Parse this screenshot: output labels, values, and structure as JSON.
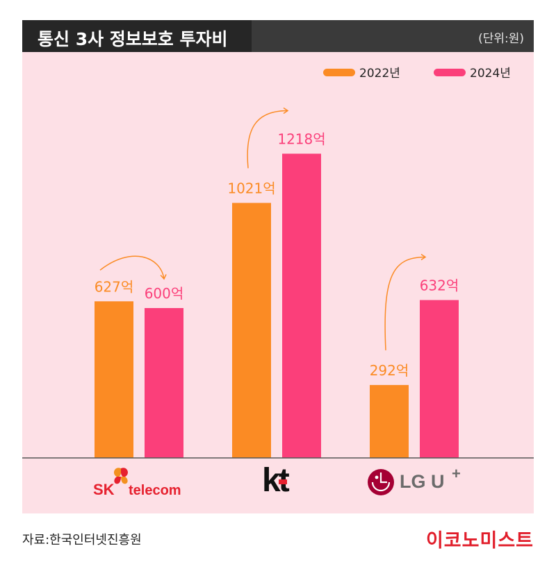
{
  "header": {
    "title": "통신 3사 정보보호 투자비",
    "unit": "(단위:원)"
  },
  "colors": {
    "series_2022": "#fb8b24",
    "series_2024": "#fb3f7a",
    "panel_bg": "#fde0e6",
    "brand": "#e11d2a"
  },
  "chart_data": {
    "type": "bar",
    "title": "통신 3사 정보보호 투자비",
    "categories": [
      "SK telecom",
      "kt",
      "LG U+"
    ],
    "series": [
      {
        "name": "2022년",
        "values": [
          627,
          1021,
          292
        ],
        "labels": [
          "627억",
          "1021억",
          "292억"
        ]
      },
      {
        "name": "2024년",
        "values": [
          600,
          1218,
          632
        ],
        "labels": [
          "600억",
          "1218억",
          "632억"
        ]
      }
    ],
    "ylim": [
      0,
      1400
    ],
    "grid": false,
    "legend": "top-right"
  },
  "logos": {
    "skt": {
      "sk": "SK",
      "text": "telecom",
      "icon": "butterfly-logo-icon"
    },
    "kt": {
      "text": "kt"
    },
    "lgu": {
      "text": "LG U",
      "plus": "+",
      "icon": "lg-face-logo-icon"
    }
  },
  "footer": {
    "source": "자료:한국인터넷진흥원",
    "brand": "이코노미스트"
  }
}
